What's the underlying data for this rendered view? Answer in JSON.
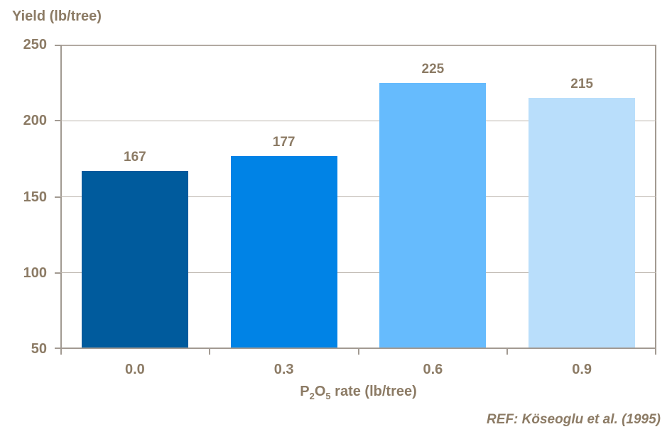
{
  "title": "Yield (lb/tree)",
  "citation": "REF: Köseoglu et al. (1995)",
  "colors": {
    "text": "#8c7b65",
    "axis": "#a29a92",
    "gridline": "#bbb3ab",
    "background": "#ffffff"
  },
  "chart_data": {
    "type": "bar",
    "title": "Yield (lb/tree)",
    "xlabel": "P2O5 rate (lb/tree)",
    "xlabel_parts": {
      "base1": "P",
      "sub1": "2",
      "base2": "O",
      "sub2": "5",
      "rest": " rate (lb/tree)"
    },
    "ylabel": "Yield (lb/tree)",
    "categories": [
      "0.0",
      "0.3",
      "0.6",
      "0.9"
    ],
    "values": [
      167,
      177,
      225,
      215
    ],
    "bar_colors": [
      "#005b9d",
      "#0083e6",
      "#66bbfd",
      "#b9defb"
    ],
    "ylim": [
      50,
      250
    ],
    "yticks": [
      250,
      200,
      150,
      100,
      50
    ],
    "grid": true,
    "legend": "none",
    "annotation": "REF: Köseoglu et al. (1995)"
  }
}
